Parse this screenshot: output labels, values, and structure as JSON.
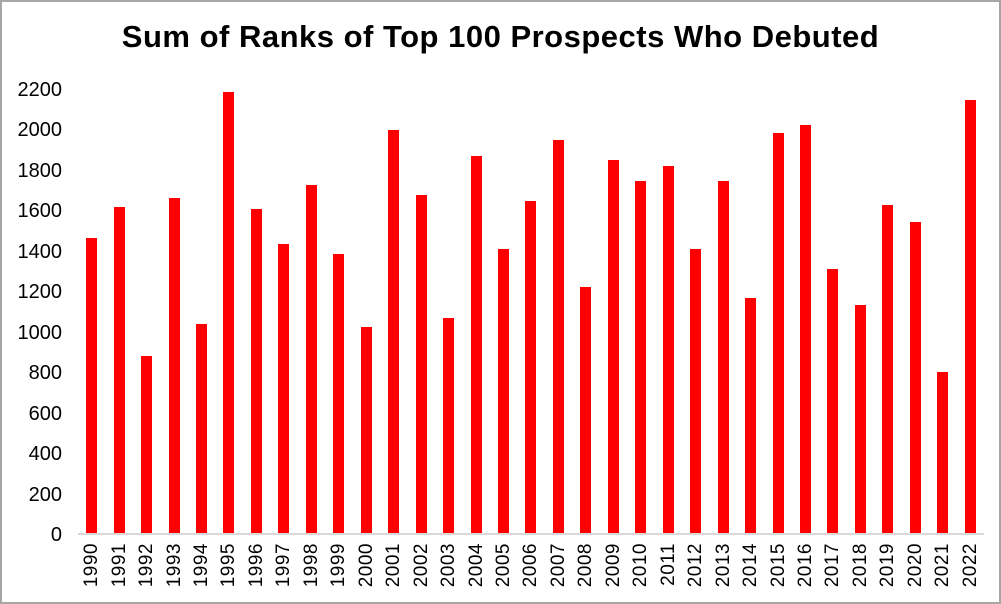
{
  "frame": {
    "border_color": "#A6A6A6",
    "background": "#FFFFFF"
  },
  "chart_data": {
    "type": "bar",
    "title": "Sum of Ranks of Top 100 Prospects Who Debuted",
    "xlabel": "",
    "ylabel": "",
    "categories": [
      "1990",
      "1991",
      "1992",
      "1993",
      "1994",
      "1995",
      "1996",
      "1997",
      "1998",
      "1999",
      "2000",
      "2001",
      "2002",
      "2003",
      "2004",
      "2005",
      "2006",
      "2007",
      "2008",
      "2009",
      "2010",
      "2011",
      "2012",
      "2013",
      "2014",
      "2015",
      "2016",
      "2017",
      "2018",
      "2019",
      "2020",
      "2021",
      "2022"
    ],
    "values": [
      1465,
      1620,
      880,
      1665,
      1040,
      2190,
      1610,
      1435,
      1730,
      1385,
      1025,
      2000,
      1680,
      1070,
      1870,
      1410,
      1650,
      1950,
      1220,
      1850,
      1750,
      1825,
      1410,
      1750,
      1165,
      1985,
      2025,
      1310,
      1130,
      1630,
      1545,
      800,
      2150
    ],
    "yticks": [
      0,
      200,
      400,
      600,
      800,
      1000,
      1200,
      1400,
      1600,
      1800,
      2000,
      2200
    ],
    "ylim": [
      0,
      2200
    ],
    "grid": false,
    "legend": false,
    "bar_color": "#FF0000",
    "axis_line_color": "#D9D9D9",
    "text_color": "#000000"
  }
}
